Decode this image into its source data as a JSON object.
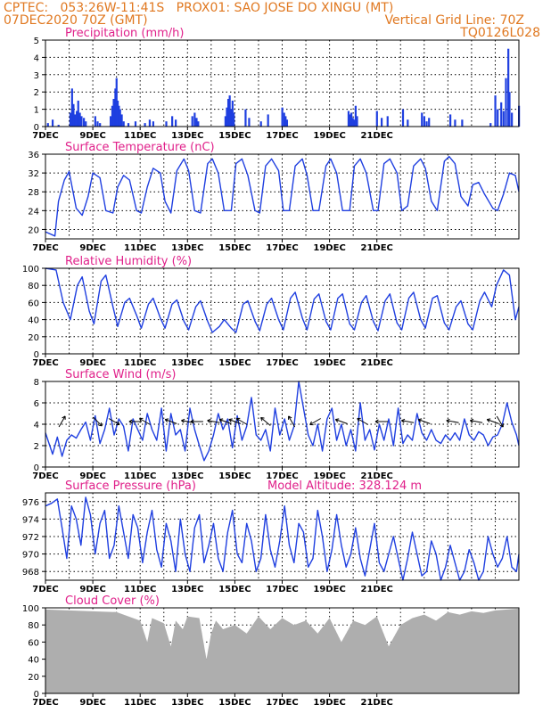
{
  "header": {
    "line1": "CPTEC:   053:26W-11:41S   PROX01: SAO JOSE DO XINGU (MT)",
    "line2_left": "07DEC2020 70Z (GMT)",
    "line2_right": "Vertical Grid Line: 70Z",
    "line3_right": "TQ0126L028"
  },
  "colors": {
    "header": "#e07820",
    "title": "#e0208a",
    "series": "#1f3fe0",
    "cloud": "#a8a8a8",
    "grid": "#000000"
  },
  "chart_data": [
    {
      "type": "bar",
      "title": "Precipitation (mm/h)",
      "ylim": [
        0,
        5
      ],
      "yticks": [
        "0",
        "1",
        "2",
        "3",
        "4",
        "5"
      ],
      "xticks": [
        "7DEC",
        "9DEC",
        "11DEC",
        "13DEC",
        "15DEC",
        "17DEC",
        "19DEC",
        "21DEC"
      ],
      "x": [
        0.1,
        0.3,
        0.55,
        1.05,
        1.12,
        1.18,
        1.25,
        1.32,
        1.38,
        1.45,
        1.52,
        1.62,
        1.7,
        2.1,
        2.2,
        2.3,
        2.75,
        2.82,
        2.88,
        2.95,
        3.0,
        3.05,
        3.1,
        3.15,
        3.22,
        3.3,
        3.5,
        3.8,
        4.2,
        4.4,
        4.55,
        5.1,
        5.35,
        5.5,
        6.2,
        6.3,
        6.38,
        6.45,
        7.6,
        7.66,
        7.72,
        7.78,
        7.84,
        7.9,
        7.95,
        8.45,
        8.6,
        9.1,
        9.4,
        10.0,
        10.08,
        10.14,
        10.2,
        12.8,
        12.86,
        12.92,
        12.98,
        13.04,
        13.1,
        13.16,
        14.0,
        14.2,
        14.45,
        15.1,
        15.3,
        15.9,
        16.0,
        16.1,
        16.2,
        17.1,
        17.3,
        17.6,
        18.8,
        19.0,
        19.1,
        19.25,
        19.35,
        19.45,
        19.55,
        19.6,
        19.7,
        20.0
      ],
      "values": [
        0.2,
        0.4,
        0.1,
        0.8,
        2.2,
        1.3,
        0.7,
        0.9,
        1.5,
        0.8,
        0.6,
        0.5,
        0.3,
        0.6,
        0.3,
        0.2,
        0.6,
        1.2,
        1.6,
        2.2,
        2.8,
        1.5,
        1.2,
        1.0,
        0.7,
        0.3,
        0.2,
        0.3,
        0.2,
        0.4,
        0.3,
        0.3,
        0.6,
        0.4,
        0.6,
        0.8,
        0.5,
        0.3,
        0.6,
        1.1,
        1.6,
        1.8,
        1.0,
        1.5,
        0.8,
        1.0,
        0.5,
        0.3,
        0.7,
        1.1,
        0.8,
        0.6,
        0.4,
        0.9,
        0.7,
        0.8,
        0.5,
        0.4,
        1.2,
        0.6,
        0.9,
        0.5,
        0.6,
        1.0,
        0.4,
        0.8,
        0.6,
        0.3,
        0.5,
        0.7,
        0.4,
        0.4,
        0.2,
        1.8,
        1.0,
        1.4,
        0.9,
        2.8,
        4.5,
        2.0,
        0.8,
        1.2
      ]
    },
    {
      "type": "line",
      "title": "Surface Temperature (nC)",
      "ylim": [
        18,
        36
      ],
      "yticks": [
        "20",
        "24",
        "28",
        "32",
        "36"
      ],
      "xticks": [
        "7DEC",
        "9DEC",
        "11DEC",
        "13DEC",
        "15DEC",
        "17DEC",
        "19DEC",
        "21DEC"
      ],
      "x": [
        0.0,
        0.4,
        0.55,
        0.8,
        1.0,
        1.3,
        1.55,
        1.8,
        2.0,
        2.3,
        2.55,
        2.85,
        3.05,
        3.3,
        3.55,
        3.85,
        4.05,
        4.3,
        4.55,
        4.85,
        5.05,
        5.3,
        5.55,
        5.85,
        6.05,
        6.3,
        6.55,
        6.85,
        7.05,
        7.3,
        7.55,
        7.85,
        8.05,
        8.3,
        8.55,
        8.85,
        9.05,
        9.3,
        9.55,
        9.85,
        10.05,
        10.3,
        10.55,
        10.85,
        11.05,
        11.3,
        11.55,
        11.85,
        12.05,
        12.3,
        12.55,
        12.85,
        13.05,
        13.3,
        13.55,
        13.85,
        14.05,
        14.3,
        14.55,
        14.85,
        15.05,
        15.3,
        15.55,
        15.85,
        16.05,
        16.3,
        16.55,
        16.85,
        17.05,
        17.3,
        17.55,
        17.85,
        18.05,
        18.3,
        18.55,
        18.9,
        19.1,
        19.35,
        19.6,
        19.85,
        20.0
      ],
      "values": [
        19.5,
        18.6,
        26.0,
        30.5,
        32.3,
        24.5,
        23.0,
        27.0,
        32.0,
        31.0,
        24.0,
        23.5,
        29.0,
        31.5,
        30.5,
        24.0,
        23.5,
        29.0,
        33.0,
        32.0,
        26.0,
        23.5,
        32.5,
        35.0,
        32.5,
        24.0,
        23.5,
        34.0,
        35.0,
        32.0,
        24.0,
        24.0,
        34.0,
        35.0,
        31.5,
        24.0,
        23.5,
        33.5,
        35.0,
        32.5,
        24.0,
        24.0,
        33.5,
        35.0,
        31.5,
        24.0,
        24.0,
        33.5,
        35.0,
        32.0,
        24.0,
        24.0,
        33.5,
        35.0,
        32.0,
        24.0,
        24.0,
        34.0,
        35.0,
        32.0,
        24.0,
        25.0,
        33.5,
        35.0,
        33.0,
        26.0,
        24.0,
        34.5,
        35.5,
        34.0,
        27.0,
        25.0,
        29.5,
        30.0,
        27.5,
        24.5,
        24.0,
        27.5,
        32.0,
        31.5,
        28.0
      ]
    },
    {
      "type": "line",
      "title": "Relative Humidity (%)",
      "ylim": [
        0,
        100
      ],
      "yticks": [
        "0",
        "20",
        "40",
        "60",
        "80",
        "100"
      ],
      "xticks": [
        "7DEC",
        "9DEC",
        "11DEC",
        "13DEC",
        "15DEC",
        "17DEC",
        "19DEC",
        "21DEC"
      ],
      "x": [
        0.0,
        0.45,
        0.75,
        1.05,
        1.35,
        1.55,
        1.85,
        2.05,
        2.35,
        2.55,
        2.85,
        3.05,
        3.35,
        3.55,
        3.85,
        4.05,
        4.35,
        4.55,
        4.85,
        5.05,
        5.35,
        5.55,
        5.85,
        6.05,
        6.35,
        6.55,
        6.85,
        7.05,
        7.35,
        7.55,
        7.85,
        8.05,
        8.35,
        8.55,
        8.85,
        9.05,
        9.35,
        9.55,
        9.85,
        10.05,
        10.35,
        10.55,
        10.85,
        11.05,
        11.35,
        11.55,
        11.85,
        12.05,
        12.35,
        12.55,
        12.85,
        13.05,
        13.35,
        13.55,
        13.85,
        14.05,
        14.35,
        14.55,
        14.85,
        15.05,
        15.35,
        15.55,
        15.85,
        16.05,
        16.35,
        16.55,
        16.85,
        17.05,
        17.35,
        17.55,
        17.85,
        18.05,
        18.35,
        18.55,
        18.85,
        19.05,
        19.35,
        19.6,
        19.85,
        20.0
      ],
      "values": [
        100,
        98,
        60,
        40,
        80,
        90,
        50,
        35,
        85,
        92,
        55,
        32,
        60,
        65,
        45,
        30,
        58,
        65,
        42,
        30,
        58,
        63,
        38,
        28,
        55,
        62,
        38,
        25,
        32,
        40,
        30,
        25,
        58,
        62,
        38,
        27,
        58,
        65,
        40,
        28,
        65,
        72,
        42,
        28,
        64,
        70,
        38,
        28,
        65,
        70,
        35,
        28,
        60,
        68,
        38,
        27,
        62,
        70,
        36,
        28,
        65,
        72,
        40,
        30,
        65,
        68,
        36,
        28,
        55,
        62,
        35,
        28,
        62,
        72,
        55,
        80,
        98,
        92,
        40,
        55
      ]
    },
    {
      "type": "line",
      "title": "Surface Wind (m/s)",
      "ylim": [
        0,
        8
      ],
      "yticks": [
        "0",
        "2",
        "4",
        "6",
        "8"
      ],
      "xticks": [
        "7DEC",
        "9DEC",
        "11DEC",
        "13DEC",
        "15DEC",
        "17DEC",
        "19DEC",
        "21DEC"
      ],
      "x": [
        0.0,
        0.3,
        0.5,
        0.7,
        0.9,
        1.1,
        1.3,
        1.5,
        1.7,
        1.9,
        2.1,
        2.3,
        2.5,
        2.7,
        2.9,
        3.1,
        3.3,
        3.5,
        3.7,
        3.9,
        4.1,
        4.3,
        4.5,
        4.7,
        4.9,
        5.1,
        5.3,
        5.5,
        5.7,
        5.9,
        6.1,
        6.3,
        6.5,
        6.7,
        6.9,
        7.1,
        7.3,
        7.5,
        7.7,
        7.9,
        8.1,
        8.3,
        8.5,
        8.7,
        8.9,
        9.1,
        9.3,
        9.5,
        9.7,
        9.9,
        10.1,
        10.3,
        10.5,
        10.7,
        10.9,
        11.1,
        11.3,
        11.5,
        11.7,
        11.9,
        12.1,
        12.3,
        12.5,
        12.7,
        12.9,
        13.1,
        13.3,
        13.5,
        13.7,
        13.9,
        14.1,
        14.3,
        14.5,
        14.7,
        14.9,
        15.1,
        15.3,
        15.5,
        15.7,
        15.9,
        16.1,
        16.3,
        16.5,
        16.7,
        16.9,
        17.1,
        17.3,
        17.5,
        17.7,
        17.9,
        18.1,
        18.3,
        18.5,
        18.7,
        18.9,
        19.1,
        19.3,
        19.5,
        19.7,
        19.9,
        20.0
      ],
      "values": [
        3.2,
        1.2,
        2.8,
        1.0,
        2.5,
        3.0,
        2.7,
        3.5,
        4.2,
        2.5,
        4.8,
        2.2,
        3.5,
        5.5,
        3.0,
        4.5,
        3.8,
        1.5,
        4.5,
        3.5,
        2.5,
        5.0,
        3.5,
        2.5,
        5.5,
        1.5,
        5.0,
        3.0,
        3.5,
        1.5,
        5.5,
        3.5,
        2.0,
        0.6,
        1.5,
        3.0,
        5.0,
        3.5,
        4.5,
        1.8,
        4.8,
        2.5,
        3.8,
        6.5,
        3.0,
        2.5,
        3.5,
        1.5,
        5.5,
        3.0,
        4.5,
        2.5,
        3.8,
        8.0,
        5.5,
        3.0,
        2.0,
        4.0,
        1.5,
        4.5,
        5.5,
        2.5,
        4.0,
        2.0,
        3.5,
        1.5,
        6.0,
        2.5,
        3.5,
        1.6,
        4.0,
        2.5,
        4.5,
        2.0,
        5.5,
        2.2,
        3.0,
        2.5,
        5.0,
        3.2,
        2.5,
        3.5,
        2.5,
        2.2,
        3.0,
        2.5,
        3.2,
        2.5,
        4.5,
        3.0,
        2.5,
        3.3,
        3.0,
        2.0,
        2.8,
        3.0,
        4.0,
        6.0,
        4.2,
        3.0,
        2.0
      ]
    },
    {
      "type": "line",
      "title": "Surface Pressure (hPa)",
      "annotation": "Model Altitude: 328.124 m",
      "ylim": [
        967,
        977
      ],
      "yticks": [
        "968",
        "970",
        "972",
        "974",
        "976"
      ],
      "xticks": [
        "7DEC",
        "9DEC",
        "11DEC",
        "13DEC",
        "15DEC",
        "17DEC",
        "19DEC",
        "21DEC"
      ],
      "x": [
        0.0,
        0.25,
        0.5,
        0.7,
        0.9,
        1.1,
        1.3,
        1.5,
        1.7,
        1.9,
        2.1,
        2.3,
        2.5,
        2.7,
        2.9,
        3.1,
        3.3,
        3.5,
        3.7,
        3.9,
        4.1,
        4.3,
        4.5,
        4.7,
        4.9,
        5.1,
        5.3,
        5.5,
        5.7,
        5.9,
        6.1,
        6.3,
        6.5,
        6.7,
        6.9,
        7.1,
        7.3,
        7.5,
        7.7,
        7.9,
        8.1,
        8.3,
        8.5,
        8.7,
        8.9,
        9.1,
        9.3,
        9.5,
        9.7,
        9.9,
        10.1,
        10.3,
        10.5,
        10.7,
        10.9,
        11.1,
        11.3,
        11.5,
        11.7,
        11.9,
        12.1,
        12.3,
        12.5,
        12.7,
        12.9,
        13.1,
        13.3,
        13.5,
        13.7,
        13.9,
        14.1,
        14.3,
        14.5,
        14.7,
        14.9,
        15.1,
        15.3,
        15.5,
        15.7,
        15.9,
        16.1,
        16.3,
        16.5,
        16.7,
        16.9,
        17.1,
        17.3,
        17.5,
        17.7,
        17.9,
        18.1,
        18.3,
        18.5,
        18.7,
        18.9,
        19.1,
        19.3,
        19.5,
        19.7,
        19.9,
        20.0
      ],
      "values": [
        975.5,
        975.8,
        976.3,
        973.0,
        969.5,
        975.5,
        974.0,
        971.0,
        976.5,
        974.5,
        970.0,
        973.5,
        975.0,
        969.5,
        971.0,
        975.5,
        972.5,
        969.5,
        974.5,
        973.0,
        969.0,
        972.5,
        975.0,
        970.5,
        968.5,
        973.5,
        971.5,
        968.0,
        974.0,
        970.0,
        968.0,
        973.0,
        974.5,
        969.0,
        971.0,
        973.5,
        969.5,
        968.0,
        972.5,
        975.0,
        970.0,
        969.0,
        973.5,
        971.5,
        968.0,
        969.5,
        974.5,
        970.5,
        968.5,
        971.5,
        975.5,
        971.0,
        969.0,
        973.5,
        972.5,
        968.5,
        969.5,
        975.0,
        972.0,
        968.0,
        970.5,
        974.5,
        971.0,
        968.5,
        970.0,
        973.0,
        969.5,
        967.5,
        970.5,
        973.5,
        969.0,
        968.0,
        970.0,
        972.0,
        969.5,
        967.0,
        969.5,
        972.5,
        970.0,
        967.5,
        968.0,
        971.5,
        970.0,
        967.0,
        968.5,
        971.0,
        969.0,
        966.8,
        968.0,
        970.5,
        969.0,
        967.0,
        968.0,
        972.0,
        970.0,
        968.5,
        969.5,
        972.0,
        968.5,
        968.0,
        970.0
      ]
    },
    {
      "type": "area",
      "title": "Cloud Cover (%)",
      "ylim": [
        0,
        100
      ],
      "yticks": [
        "0",
        "20",
        "40",
        "60",
        "80",
        "100"
      ],
      "xticks": [
        "7DEC",
        "9DEC",
        "11DEC",
        "13DEC",
        "15DEC",
        "17DEC",
        "19DEC",
        "21DEC"
      ],
      "x": [
        0.0,
        1.0,
        2.0,
        3.0,
        4.0,
        4.3,
        4.5,
        5.0,
        5.3,
        5.5,
        5.8,
        6.0,
        6.5,
        6.8,
        7.0,
        7.2,
        7.5,
        8.0,
        8.5,
        9.0,
        9.5,
        10.0,
        10.5,
        11.0,
        11.5,
        12.0,
        12.5,
        13.0,
        13.5,
        14.0,
        14.5,
        15.0,
        15.5,
        16.0,
        16.5,
        17.0,
        17.5,
        18.0,
        18.5,
        19.0,
        19.5,
        20.0
      ],
      "values": [
        98,
        97,
        96,
        95,
        85,
        60,
        88,
        82,
        55,
        85,
        75,
        90,
        88,
        40,
        70,
        85,
        75,
        80,
        70,
        90,
        75,
        88,
        80,
        85,
        70,
        88,
        60,
        85,
        80,
        90,
        55,
        80,
        88,
        92,
        85,
        95,
        92,
        96,
        94,
        97,
        98,
        99
      ]
    }
  ]
}
